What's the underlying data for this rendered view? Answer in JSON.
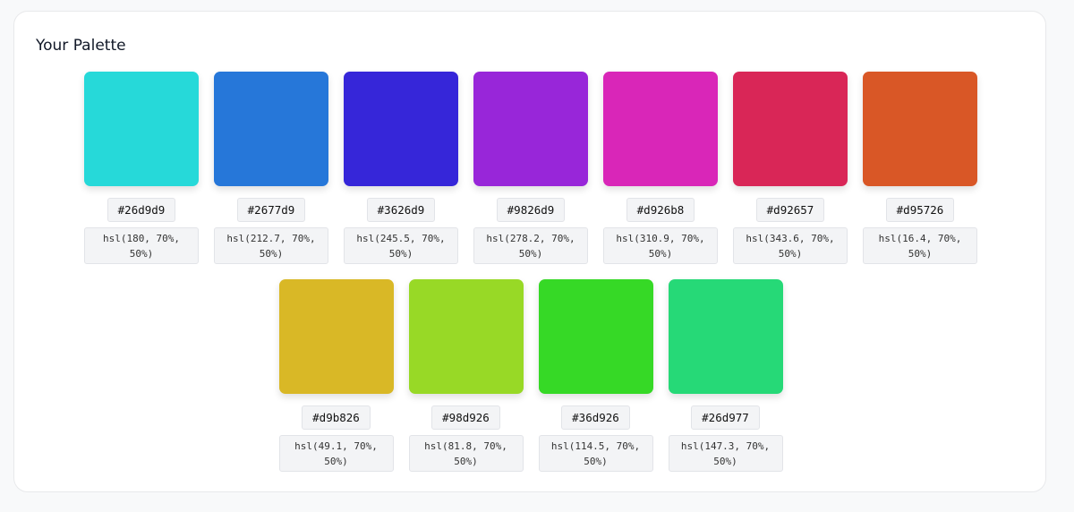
{
  "palette": {
    "title": "Your Palette",
    "colors": [
      {
        "hex": "#26d9d9",
        "hsl": "hsl(180, 70%, 50%)"
      },
      {
        "hex": "#2677d9",
        "hsl": "hsl(212.7, 70%, 50%)"
      },
      {
        "hex": "#3626d9",
        "hsl": "hsl(245.5, 70%, 50%)"
      },
      {
        "hex": "#9826d9",
        "hsl": "hsl(278.2, 70%, 50%)"
      },
      {
        "hex": "#d926b8",
        "hsl": "hsl(310.9, 70%, 50%)"
      },
      {
        "hex": "#d92657",
        "hsl": "hsl(343.6, 70%, 50%)"
      },
      {
        "hex": "#d95726",
        "hsl": "hsl(16.4, 70%, 50%)"
      },
      {
        "hex": "#d9b826",
        "hsl": "hsl(49.1, 70%, 50%)"
      },
      {
        "hex": "#98d926",
        "hsl": "hsl(81.8, 70%, 50%)"
      },
      {
        "hex": "#36d926",
        "hsl": "hsl(114.5, 70%, 50%)"
      },
      {
        "hex": "#26d977",
        "hsl": "hsl(147.3, 70%, 50%)"
      }
    ]
  }
}
